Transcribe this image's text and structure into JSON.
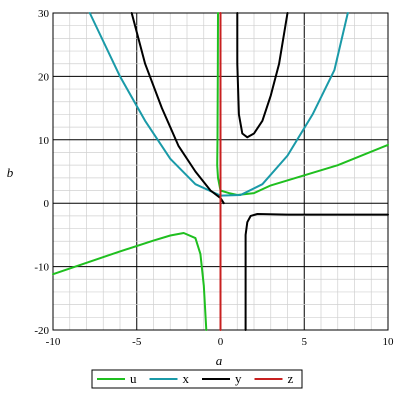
{
  "chart_data": {
    "type": "line",
    "title": "",
    "xlabel": "a",
    "ylabel": "b",
    "xlim": [
      -10,
      10
    ],
    "ylim": [
      -20,
      30
    ],
    "x_ticks": [
      -10,
      -5,
      0,
      5,
      10
    ],
    "y_ticks": [
      -20,
      -10,
      0,
      10,
      20,
      30
    ],
    "x_tick_labels": [
      "-10",
      "-5",
      "0",
      "5",
      "10"
    ],
    "y_tick_labels": [
      "-20",
      "-10",
      "0",
      "10",
      "20",
      "30"
    ],
    "grid": true,
    "legend_position": "bottom",
    "series": [
      {
        "name": "u",
        "color": "#1fbf1f",
        "segments": [
          [
            [
              -0.15,
              30
            ],
            [
              -0.16,
              20
            ],
            [
              -0.18,
              10
            ],
            [
              -0.2,
              6
            ],
            [
              -0.15,
              4
            ],
            [
              0,
              2
            ],
            [
              0.5,
              1.6
            ],
            [
              1,
              1.3
            ],
            [
              2,
              1.6
            ],
            [
              3,
              2.8
            ],
            [
              5,
              4.4
            ],
            [
              7,
              6
            ],
            [
              10,
              9.2
            ]
          ],
          [
            [
              -10,
              -11.2
            ],
            [
              -8,
              -9.4
            ],
            [
              -6,
              -7.6
            ],
            [
              -4,
              -5.9
            ],
            [
              -3,
              -5.1
            ],
            [
              -2.2,
              -4.7
            ],
            [
              -1.5,
              -5.5
            ],
            [
              -1.2,
              -8
            ],
            [
              -1.0,
              -13
            ],
            [
              -0.85,
              -20
            ]
          ]
        ]
      },
      {
        "name": "x",
        "color": "#1a9aa8",
        "segments": [
          [
            [
              -7.8,
              30
            ],
            [
              -6,
              20
            ],
            [
              -4.5,
              13
            ],
            [
              -3,
              7
            ],
            [
              -1.5,
              3
            ],
            [
              0,
              1.2
            ],
            [
              1.2,
              1.3
            ],
            [
              2.5,
              3
            ],
            [
              4,
              7.5
            ],
            [
              5.5,
              14
            ],
            [
              6.8,
              21
            ],
            [
              7.6,
              30
            ]
          ]
        ]
      },
      {
        "name": "y",
        "color": "#000000",
        "segments": [
          [
            [
              -5.3,
              30
            ],
            [
              -4.5,
              22
            ],
            [
              -3.5,
              15
            ],
            [
              -2.5,
              9
            ],
            [
              -1.5,
              5
            ],
            [
              -0.6,
              2
            ],
            [
              0,
              0.8
            ],
            [
              0.2,
              0
            ]
          ],
          [
            [
              1.0,
              30
            ],
            [
              1.0,
              22
            ],
            [
              1.1,
              14
            ],
            [
              1.3,
              11
            ],
            [
              1.6,
              10.4
            ],
            [
              2.0,
              11
            ],
            [
              2.5,
              13
            ],
            [
              3.0,
              17
            ],
            [
              3.5,
              22
            ],
            [
              4.0,
              30
            ]
          ],
          [
            [
              1.5,
              -20
            ],
            [
              1.5,
              -10
            ],
            [
              1.5,
              -5
            ],
            [
              1.6,
              -3
            ],
            [
              1.8,
              -2
            ],
            [
              2.2,
              -1.7
            ],
            [
              4,
              -1.8
            ],
            [
              7,
              -1.8
            ],
            [
              10,
              -1.8
            ]
          ]
        ]
      },
      {
        "name": "z",
        "color": "#c82020",
        "segments": [
          [
            [
              0,
              -20
            ],
            [
              0,
              30
            ]
          ]
        ]
      }
    ]
  }
}
